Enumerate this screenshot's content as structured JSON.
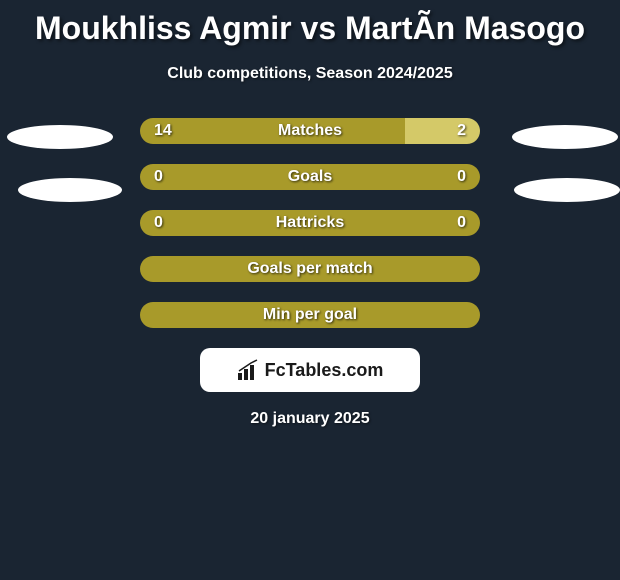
{
  "title": "Moukhliss Agmir vs MartÃ­n Masogo",
  "subtitle": "Club competitions, Season 2024/2025",
  "date": "20 january 2025",
  "logo_text": "FcTables.com",
  "colors": {
    "background": "#1a2532",
    "bar_olive": "#a89a2a",
    "bar_light": "#d4c968",
    "text": "#ffffff"
  },
  "stats": [
    {
      "label": "Matches",
      "left_value": "14",
      "right_value": "2",
      "left_width_pct": 78,
      "right_width_pct": 22,
      "left_color": "#a89a2a",
      "right_color": "#d4c968"
    },
    {
      "label": "Goals",
      "left_value": "0",
      "right_value": "0",
      "left_width_pct": 100,
      "right_width_pct": 0,
      "left_color": "#a89a2a",
      "right_color": "#d4c968"
    },
    {
      "label": "Hattricks",
      "left_value": "0",
      "right_value": "0",
      "left_width_pct": 100,
      "right_width_pct": 0,
      "left_color": "#a89a2a",
      "right_color": "#d4c968"
    },
    {
      "label": "Goals per match",
      "left_value": "",
      "right_value": "",
      "left_width_pct": 100,
      "right_width_pct": 0,
      "left_color": "#a89a2a",
      "right_color": "#d4c968"
    },
    {
      "label": "Min per goal",
      "left_value": "",
      "right_value": "",
      "left_width_pct": 100,
      "right_width_pct": 0,
      "left_color": "#a89a2a",
      "right_color": "#d4c968"
    }
  ]
}
